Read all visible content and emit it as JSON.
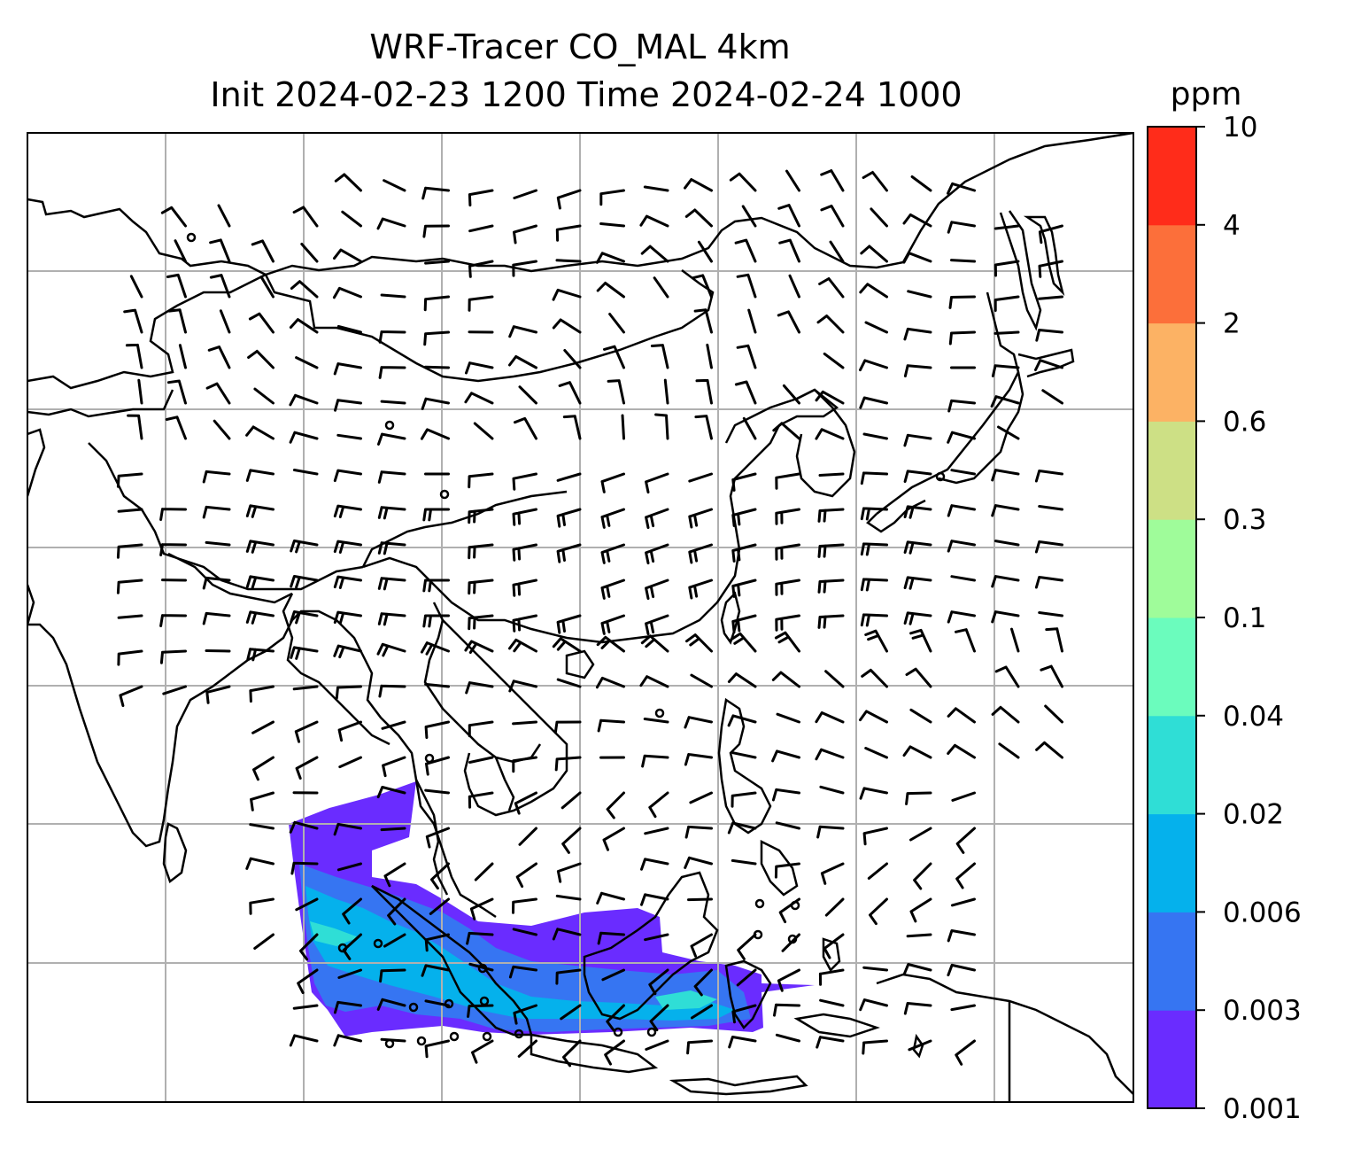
{
  "chart_data": {
    "type": "heatmap",
    "title_line1": "WRF-Tracer CO_MAL 4km",
    "title_line2": "Init 2024-02-23 1200 Time 2024-02-24 1000",
    "colorbar": {
      "unit": "ppm",
      "levels": [
        "0.001",
        "0.003",
        "0.006",
        "0.02",
        "0.04",
        "0.1",
        "0.3",
        "0.6",
        "2",
        "4",
        "10"
      ],
      "colors": [
        "#6a2cff",
        "#3675f2",
        "#05b1ec",
        "#2fded6",
        "#6bfcbd",
        "#9ffc9a",
        "#cde085",
        "#fcb264",
        "#fc6f3a",
        "#ff2c1a"
      ]
    },
    "grid": true,
    "grid_color": "#b0b0b0",
    "overlays": [
      "coastlines",
      "country borders",
      "wind barbs"
    ]
  }
}
